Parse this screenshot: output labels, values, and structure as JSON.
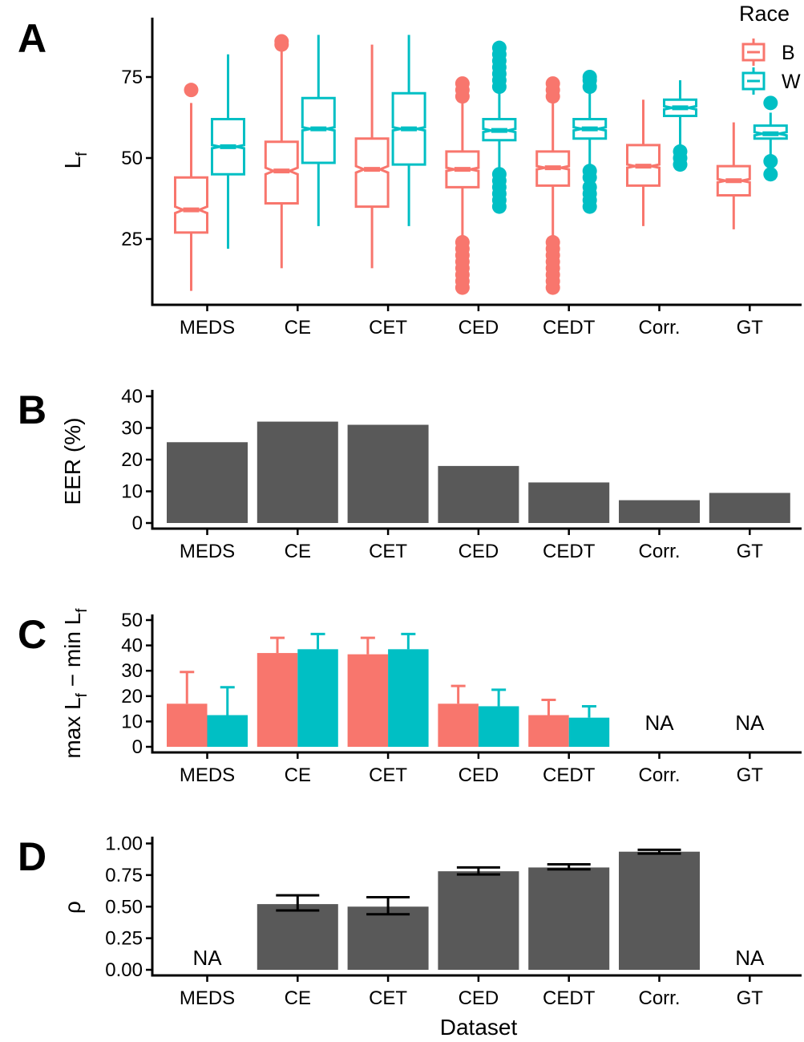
{
  "colors": {
    "B": "#F8766D",
    "W": "#00BFC4",
    "bar": "#595959",
    "error": "#000000"
  },
  "chart_data": [
    {
      "panel": "A",
      "type": "boxplot",
      "title": "",
      "xlabel": "",
      "ylabel_main": "L",
      "ylabel_sub": "f",
      "ylim": [
        6,
        92
      ],
      "yticks": [
        25,
        50,
        75
      ],
      "categories": [
        "MEDS",
        "CE",
        "CET",
        "CED",
        "CEDT",
        "Corr.",
        "GT"
      ],
      "legend": {
        "title": "Race",
        "entries": [
          "B",
          "W"
        ],
        "position": "top-right"
      },
      "series": [
        {
          "name": "B",
          "boxes": [
            {
              "lw": 9,
              "q1": 27,
              "med": 34,
              "q3": 44,
              "uw": 67,
              "nlo": 33,
              "nhi": 35,
              "outliers": [
                71
              ]
            },
            {
              "lw": 16,
              "q1": 36,
              "med": 46,
              "q3": 55,
              "uw": 84,
              "nlo": 45,
              "nhi": 47,
              "outliers": [
                85,
                86
              ]
            },
            {
              "lw": 16,
              "q1": 35,
              "med": 46.5,
              "q3": 56,
              "uw": 85,
              "nlo": 45.5,
              "nhi": 47.5,
              "outliers": []
            },
            {
              "lw": 25,
              "q1": 41,
              "med": 46.5,
              "q3": 52,
              "uw": 68,
              "nlo": 46,
              "nhi": 47,
              "outliers": [
                10,
                12,
                14,
                16,
                18,
                20,
                22,
                24,
                69,
                71,
                73
              ]
            },
            {
              "lw": 25,
              "q1": 41.5,
              "med": 47,
              "q3": 52,
              "uw": 68,
              "nlo": 46.5,
              "nhi": 47.5,
              "outliers": [
                10,
                12,
                14,
                16,
                18,
                20,
                22,
                24,
                69,
                71,
                73
              ]
            },
            {
              "lw": 29,
              "q1": 41.5,
              "med": 47.5,
              "q3": 54,
              "uw": 68,
              "nlo": 47,
              "nhi": 48,
              "outliers": []
            },
            {
              "lw": 28,
              "q1": 38.5,
              "med": 43,
              "q3": 47.5,
              "uw": 61,
              "nlo": 42.5,
              "nhi": 43.5,
              "outliers": []
            }
          ]
        },
        {
          "name": "W",
          "boxes": [
            {
              "lw": 22,
              "q1": 45,
              "med": 53.5,
              "q3": 62,
              "uw": 82,
              "nlo": 53,
              "nhi": 54,
              "outliers": []
            },
            {
              "lw": 29,
              "q1": 48.5,
              "med": 59,
              "q3": 68.5,
              "uw": 88,
              "nlo": 58.5,
              "nhi": 59.5,
              "outliers": []
            },
            {
              "lw": 29,
              "q1": 48,
              "med": 59,
              "q3": 70,
              "uw": 88,
              "nlo": 58.5,
              "nhi": 59.5,
              "outliers": []
            },
            {
              "lw": 45,
              "q1": 55.5,
              "med": 58.5,
              "q3": 62,
              "uw": 71,
              "nlo": 58,
              "nhi": 59,
              "outliers": [
                35,
                37,
                39,
                41,
                43,
                45,
                72,
                74,
                76,
                78,
                80,
                82,
                84
              ]
            },
            {
              "lw": 46,
              "q1": 56,
              "med": 59,
              "q3": 62,
              "uw": 71,
              "nlo": 58.5,
              "nhi": 59.5,
              "outliers": [
                35,
                37,
                39,
                41,
                44,
                46,
                72,
                74,
                75
              ]
            },
            {
              "lw": 53,
              "q1": 63,
              "med": 65.5,
              "q3": 68,
              "uw": 74,
              "nlo": 65,
              "nhi": 66,
              "outliers": [
                48,
                50,
                52
              ]
            },
            {
              "lw": 50,
              "q1": 56,
              "med": 57.5,
              "q3": 60,
              "uw": 64,
              "nlo": 57,
              "nhi": 58,
              "outliers": [
                45,
                49,
                67
              ]
            }
          ]
        }
      ]
    },
    {
      "panel": "B",
      "type": "bar",
      "title": "",
      "xlabel": "",
      "ylabel": "EER (%)",
      "ylim": [
        0,
        41
      ],
      "yticks": [
        0,
        10,
        20,
        30,
        40
      ],
      "categories": [
        "MEDS",
        "CE",
        "CET",
        "CED",
        "CEDT",
        "Corr.",
        "GT"
      ],
      "values": [
        25.5,
        32,
        31,
        18,
        12.8,
        7.2,
        9.5
      ]
    },
    {
      "panel": "C",
      "type": "bar",
      "title": "",
      "xlabel": "",
      "ylabel_parts": [
        "max L",
        "f",
        " − min L",
        "f"
      ],
      "ylim": [
        0,
        52
      ],
      "yticks": [
        0,
        10,
        20,
        30,
        40,
        50
      ],
      "categories": [
        "MEDS",
        "CE",
        "CET",
        "CED",
        "CEDT",
        "Corr.",
        "GT"
      ],
      "series": [
        {
          "name": "B",
          "values": [
            17,
            37,
            36.5,
            17,
            12.5,
            null,
            null
          ],
          "err_upper": [
            29.5,
            43,
            43,
            24,
            18.5,
            null,
            null
          ]
        },
        {
          "name": "W",
          "values": [
            12.5,
            38.5,
            38.5,
            16,
            11.5,
            null,
            null
          ],
          "err_upper": [
            23.5,
            44.5,
            44.5,
            22.5,
            16,
            null,
            null
          ]
        }
      ],
      "na_labels": [
        "",
        "",
        "",
        "",
        "",
        "NA",
        "NA"
      ]
    },
    {
      "panel": "D",
      "type": "bar",
      "title": "",
      "xlabel": "Dataset",
      "ylabel": "ρ",
      "ylim": [
        0,
        1.03
      ],
      "yticks": [
        "0.00",
        "0.25",
        "0.50",
        "0.75",
        "1.00"
      ],
      "categories": [
        "MEDS",
        "CE",
        "CET",
        "CED",
        "CEDT",
        "Corr.",
        "GT"
      ],
      "values": [
        null,
        0.52,
        0.5,
        0.78,
        0.81,
        0.935,
        null
      ],
      "err_lower": [
        null,
        0.47,
        0.44,
        0.755,
        0.795,
        0.92,
        null
      ],
      "err_upper": [
        null,
        0.59,
        0.575,
        0.81,
        0.835,
        0.95,
        null
      ],
      "na_labels": [
        "NA",
        "",
        "",
        "",
        "",
        "",
        "NA"
      ]
    }
  ]
}
